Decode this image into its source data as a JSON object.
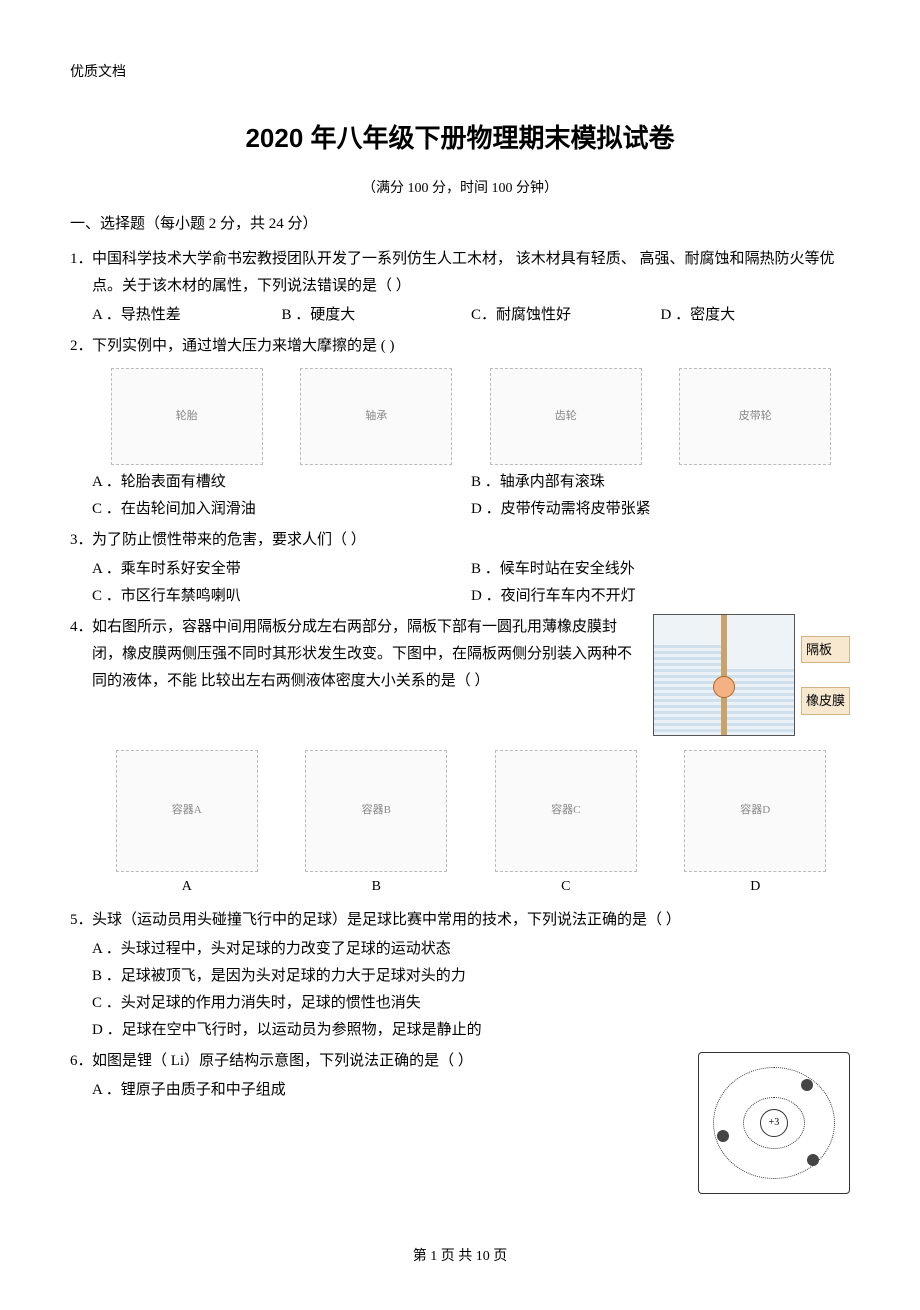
{
  "header_small": "优质文档",
  "title": "2020 年八年级下册物理期末模拟试卷",
  "subtitle": "（满分  100 分，时间   100 分钟）",
  "section1": "一、选择题（每小题     2 分，共  24 分）",
  "q1": {
    "num": "1．",
    "text": "中国科学技术大学俞书宏教授团队开发了一系列仿生人工木材，        该木材具有轻质、 高强、耐腐蚀和隔热防火等优点。关于该木材的属性，下列说法错误的是（             ）",
    "A": "A ．导热性差",
    "B": "B ．硬度大",
    "C": "C．耐腐蚀性好",
    "D": "D ．密度大"
  },
  "q2": {
    "num": "2．",
    "text": "下列实例中，通过增大压力来增大摩擦的是       (       )",
    "figA_alt": "轮胎",
    "figB_alt": "轴承",
    "figC_alt": "齿轮",
    "figD_alt": "皮带轮",
    "A": "A ．轮胎表面有槽纹",
    "B": "B ．轴承内部有滚珠",
    "C": "C ．在齿轮间加入润滑油",
    "D": "D ．皮带传动需将皮带张紧"
  },
  "q3": {
    "num": "3．",
    "text": "为了防止惯性带来的危害，要求人们（               ）",
    "A": "A ．乘车时系好安全带",
    "B": "B ．候车时站在安全线外",
    "C": "C ．市区行车禁鸣喇叭",
    "D": "D ．夜间行车车内不开灯"
  },
  "q4": {
    "num": "4．",
    "text": "如右图所示，容器中间用隔板分成左右两部分，隔板下部有一圆孔用薄橡皮膜封闭，橡皮膜两侧压强不同时其形状发生改变。下图中，在隔板两侧分别装入两种不同的液体，不能      比较出左右两侧液体密度大小关系的是（               ）",
    "label1": "隔板",
    "label2": "橡皮膜",
    "capA": "A",
    "capB": "B",
    "capC": "C",
    "capD": "D",
    "figA_alt": "容器A",
    "figB_alt": "容器B",
    "figC_alt": "容器C",
    "figD_alt": "容器D"
  },
  "q5": {
    "num": "5．",
    "text": "头球（运动员用头碰撞飞行中的足球）是足球比赛中常用的技术，下列说法正确的是（         ）",
    "A": "A ．头球过程中，头对足球的力改变了足球的运动状态",
    "B": "B ．足球被顶飞，是因为头对足球的力大于足球对头的力",
    "C": "C ．头对足球的作用力消失时，足球的惯性也消失",
    "D": "D ．足球在空中飞行时，以运动员为参照物，足球是静止的"
  },
  "q6": {
    "num": "6．",
    "text": "如图是锂（ Li）原子结构示意图，下列说法正确的是（               ）",
    "A": "A ．锂原子由质子和中子组成",
    "nucleus": "+3"
  },
  "footer": "第  1 页 共 10 页"
}
